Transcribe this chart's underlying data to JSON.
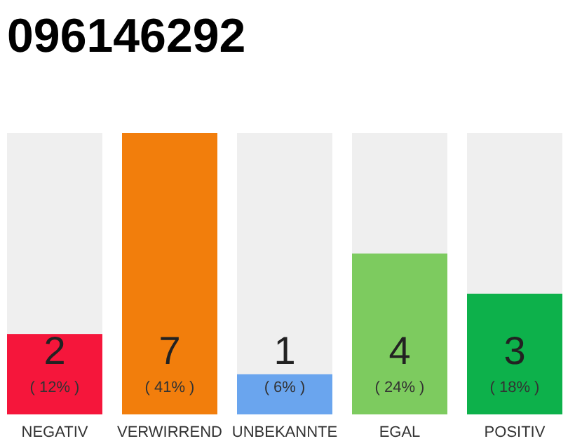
{
  "chart_data": {
    "type": "bar",
    "title": "096146292",
    "categories": [
      "NEGATIV",
      "VERWIRREND",
      "UNBEKANNTE",
      "EGAL",
      "POSITIV"
    ],
    "values": [
      2,
      7,
      1,
      4,
      3
    ],
    "colors": [
      "#f5163b",
      "#f27e0c",
      "#6aa5ee",
      "#7dcb5f",
      "#0db14b"
    ],
    "ylim": [
      0,
      7
    ],
    "tick_labels": "x",
    "data_labels": true,
    "annotations": [
      "( 12% )",
      "( 41% )",
      "( 6% )",
      "( 24% )",
      "( 18% )"
    ]
  }
}
